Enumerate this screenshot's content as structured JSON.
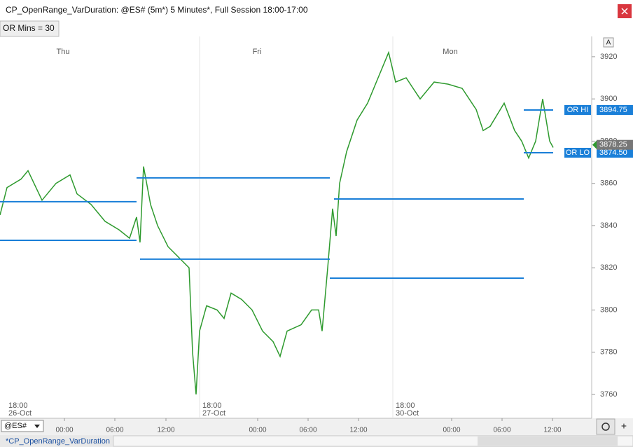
{
  "window": {
    "title": "CP_OpenRange_VarDuration: @ES# (5m*) 5 Minutes*, Full Session 18:00-17:00"
  },
  "indicator_label": "OR Mins = 30",
  "autoscale_button": "A",
  "symbol": "@ES#",
  "tab": "*CP_OpenRange_VarDuration",
  "chart_data": {
    "type": "line",
    "color": "#2e9a2e",
    "x": [
      0,
      10,
      30,
      40,
      60,
      80,
      100,
      110,
      130,
      150,
      170,
      185,
      195,
      200,
      205,
      215,
      225,
      240,
      255,
      270,
      275,
      280,
      285,
      295,
      310,
      320,
      330,
      345,
      360,
      375,
      390,
      400,
      410,
      430,
      445,
      455,
      460,
      468,
      475,
      480,
      485,
      495,
      510,
      525,
      540,
      555,
      565,
      580,
      600,
      620,
      640,
      660,
      680,
      690,
      700,
      720,
      735,
      745,
      755,
      765,
      775,
      785,
      790
    ],
    "values": [
      3845,
      3858,
      3862,
      3866,
      3852,
      3860,
      3864,
      3855,
      3850,
      3842,
      3838,
      3834,
      3844,
      3832,
      3868,
      3850,
      3840,
      3830,
      3825,
      3820,
      3780,
      3760,
      3790,
      3802,
      3800,
      3796,
      3808,
      3805,
      3800,
      3790,
      3785,
      3778,
      3790,
      3793,
      3800,
      3800,
      3790,
      3820,
      3848,
      3835,
      3860,
      3875,
      3890,
      3898,
      3910,
      3922,
      3908,
      3910,
      3900,
      3908,
      3907,
      3905,
      3895,
      3885,
      3887,
      3898,
      3885,
      3880,
      3872,
      3880,
      3900,
      3880,
      3877
    ],
    "xlim": [
      0,
      845
    ],
    "ylim": [
      3748.7,
      3929.6
    ],
    "yticks": [
      3760,
      3780,
      3800,
      3820,
      3840,
      3860,
      3880,
      3900,
      3920
    ],
    "xticks": [
      {
        "value": 92,
        "label": "00:00"
      },
      {
        "value": 164,
        "label": "06:00"
      },
      {
        "value": 237,
        "label": "12:00"
      },
      {
        "value": 368,
        "label": "00:00"
      },
      {
        "value": 440,
        "label": "06:00"
      },
      {
        "value": 512,
        "label": "12:00"
      },
      {
        "value": 645,
        "label": "00:00"
      },
      {
        "value": 717,
        "label": "06:00"
      },
      {
        "value": 789,
        "label": "12:00"
      }
    ],
    "sessions": [
      {
        "x": 10,
        "day": "Thu",
        "time": "18:00",
        "date": "26-Oct"
      },
      {
        "x": 287,
        "day": "Fri",
        "time": "18:00",
        "date": "27-Oct"
      },
      {
        "x": 563,
        "day": "Mon",
        "time": "18:00",
        "date": "30-Oct"
      }
    ],
    "or_color": "#1a7fd8",
    "or_levels": [
      {
        "start": 0,
        "end": 195,
        "value": 3851.3
      },
      {
        "start": 0,
        "end": 195,
        "value": 3833.0
      },
      {
        "start": 195,
        "end": 471,
        "value": 3862.6
      },
      {
        "start": 200,
        "end": 471,
        "value": 3824.1
      },
      {
        "start": 477,
        "end": 748,
        "value": 3852.6
      },
      {
        "start": 471,
        "end": 748,
        "value": 3815.1
      },
      {
        "start": 748,
        "end": 790,
        "value": 3894.75
      },
      {
        "start": 748,
        "end": 790,
        "value": 3874.5
      }
    ],
    "or_labels": [
      {
        "label": "OR HI",
        "value": 3894.75,
        "value_label": "3894.75"
      },
      {
        "label": "OR LO",
        "value": 3874.5,
        "value_label": "3874.50"
      }
    ],
    "last_price": 3878.25,
    "last_price_color": "#2e9a2e"
  }
}
